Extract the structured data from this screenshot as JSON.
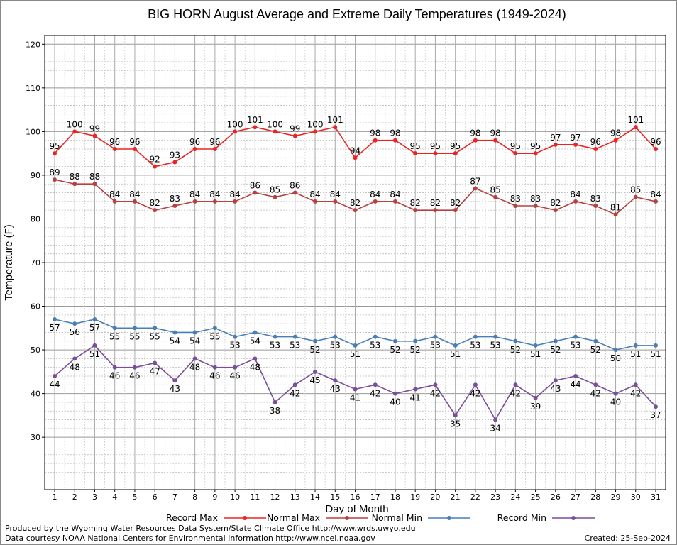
{
  "chart_data": {
    "type": "line",
    "title": "BIG HORN August Average and Extreme Daily Temperatures (1949-2024)",
    "xlabel": "Day of Month",
    "ylabel": "Temperature (F)",
    "ylim": [
      18,
      122
    ],
    "yticks": [
      30,
      40,
      50,
      60,
      70,
      80,
      90,
      100,
      110,
      120
    ],
    "x": [
      1,
      2,
      3,
      4,
      5,
      6,
      7,
      8,
      9,
      10,
      11,
      12,
      13,
      14,
      15,
      16,
      17,
      18,
      19,
      20,
      21,
      22,
      23,
      24,
      25,
      26,
      27,
      28,
      29,
      30,
      31
    ],
    "grid": true,
    "legend_position": "bottom",
    "series": [
      {
        "name": "Record Max",
        "color": "#ee2222",
        "label_pos": "above",
        "values": [
          95,
          100,
          99,
          96,
          96,
          92,
          93,
          96,
          96,
          100,
          101,
          100,
          99,
          100,
          101,
          94,
          98,
          98,
          95,
          95,
          95,
          98,
          98,
          95,
          95,
          97,
          97,
          96,
          98,
          101,
          96
        ]
      },
      {
        "name": "Normal Max",
        "color": "#b84040",
        "label_pos": "above",
        "values": [
          89,
          88,
          88,
          84,
          84,
          82,
          83,
          84,
          84,
          84,
          86,
          85,
          86,
          84,
          84,
          82,
          84,
          84,
          82,
          82,
          82,
          87,
          85,
          83,
          83,
          82,
          84,
          83,
          81,
          85,
          84
        ]
      },
      {
        "name": "Normal Min",
        "color": "#4a7fb5",
        "label_pos": "below",
        "values": [
          57,
          56,
          57,
          55,
          55,
          55,
          54,
          54,
          55,
          53,
          54,
          53,
          53,
          52,
          53,
          51,
          53,
          52,
          52,
          53,
          51,
          53,
          53,
          52,
          51,
          52,
          53,
          52,
          50,
          51,
          51
        ]
      },
      {
        "name": "Record Min",
        "color": "#7a4f9a",
        "label_pos": "below",
        "values": [
          44,
          48,
          51,
          46,
          46,
          47,
          43,
          48,
          46,
          46,
          48,
          38,
          42,
          45,
          43,
          41,
          42,
          40,
          41,
          42,
          35,
          42,
          34,
          42,
          39,
          43,
          44,
          42,
          40,
          42,
          37
        ]
      }
    ]
  },
  "footer": {
    "produced_by": "Produced by the Wyoming Water Resources Data System/State Climate Office http://www.wrds.uwyo.edu",
    "courtesy": "Data courtesy NOAA National Centers for Environmental Information http://www.ncei.noaa.gov",
    "created": "Created:  25-Sep-2024"
  }
}
